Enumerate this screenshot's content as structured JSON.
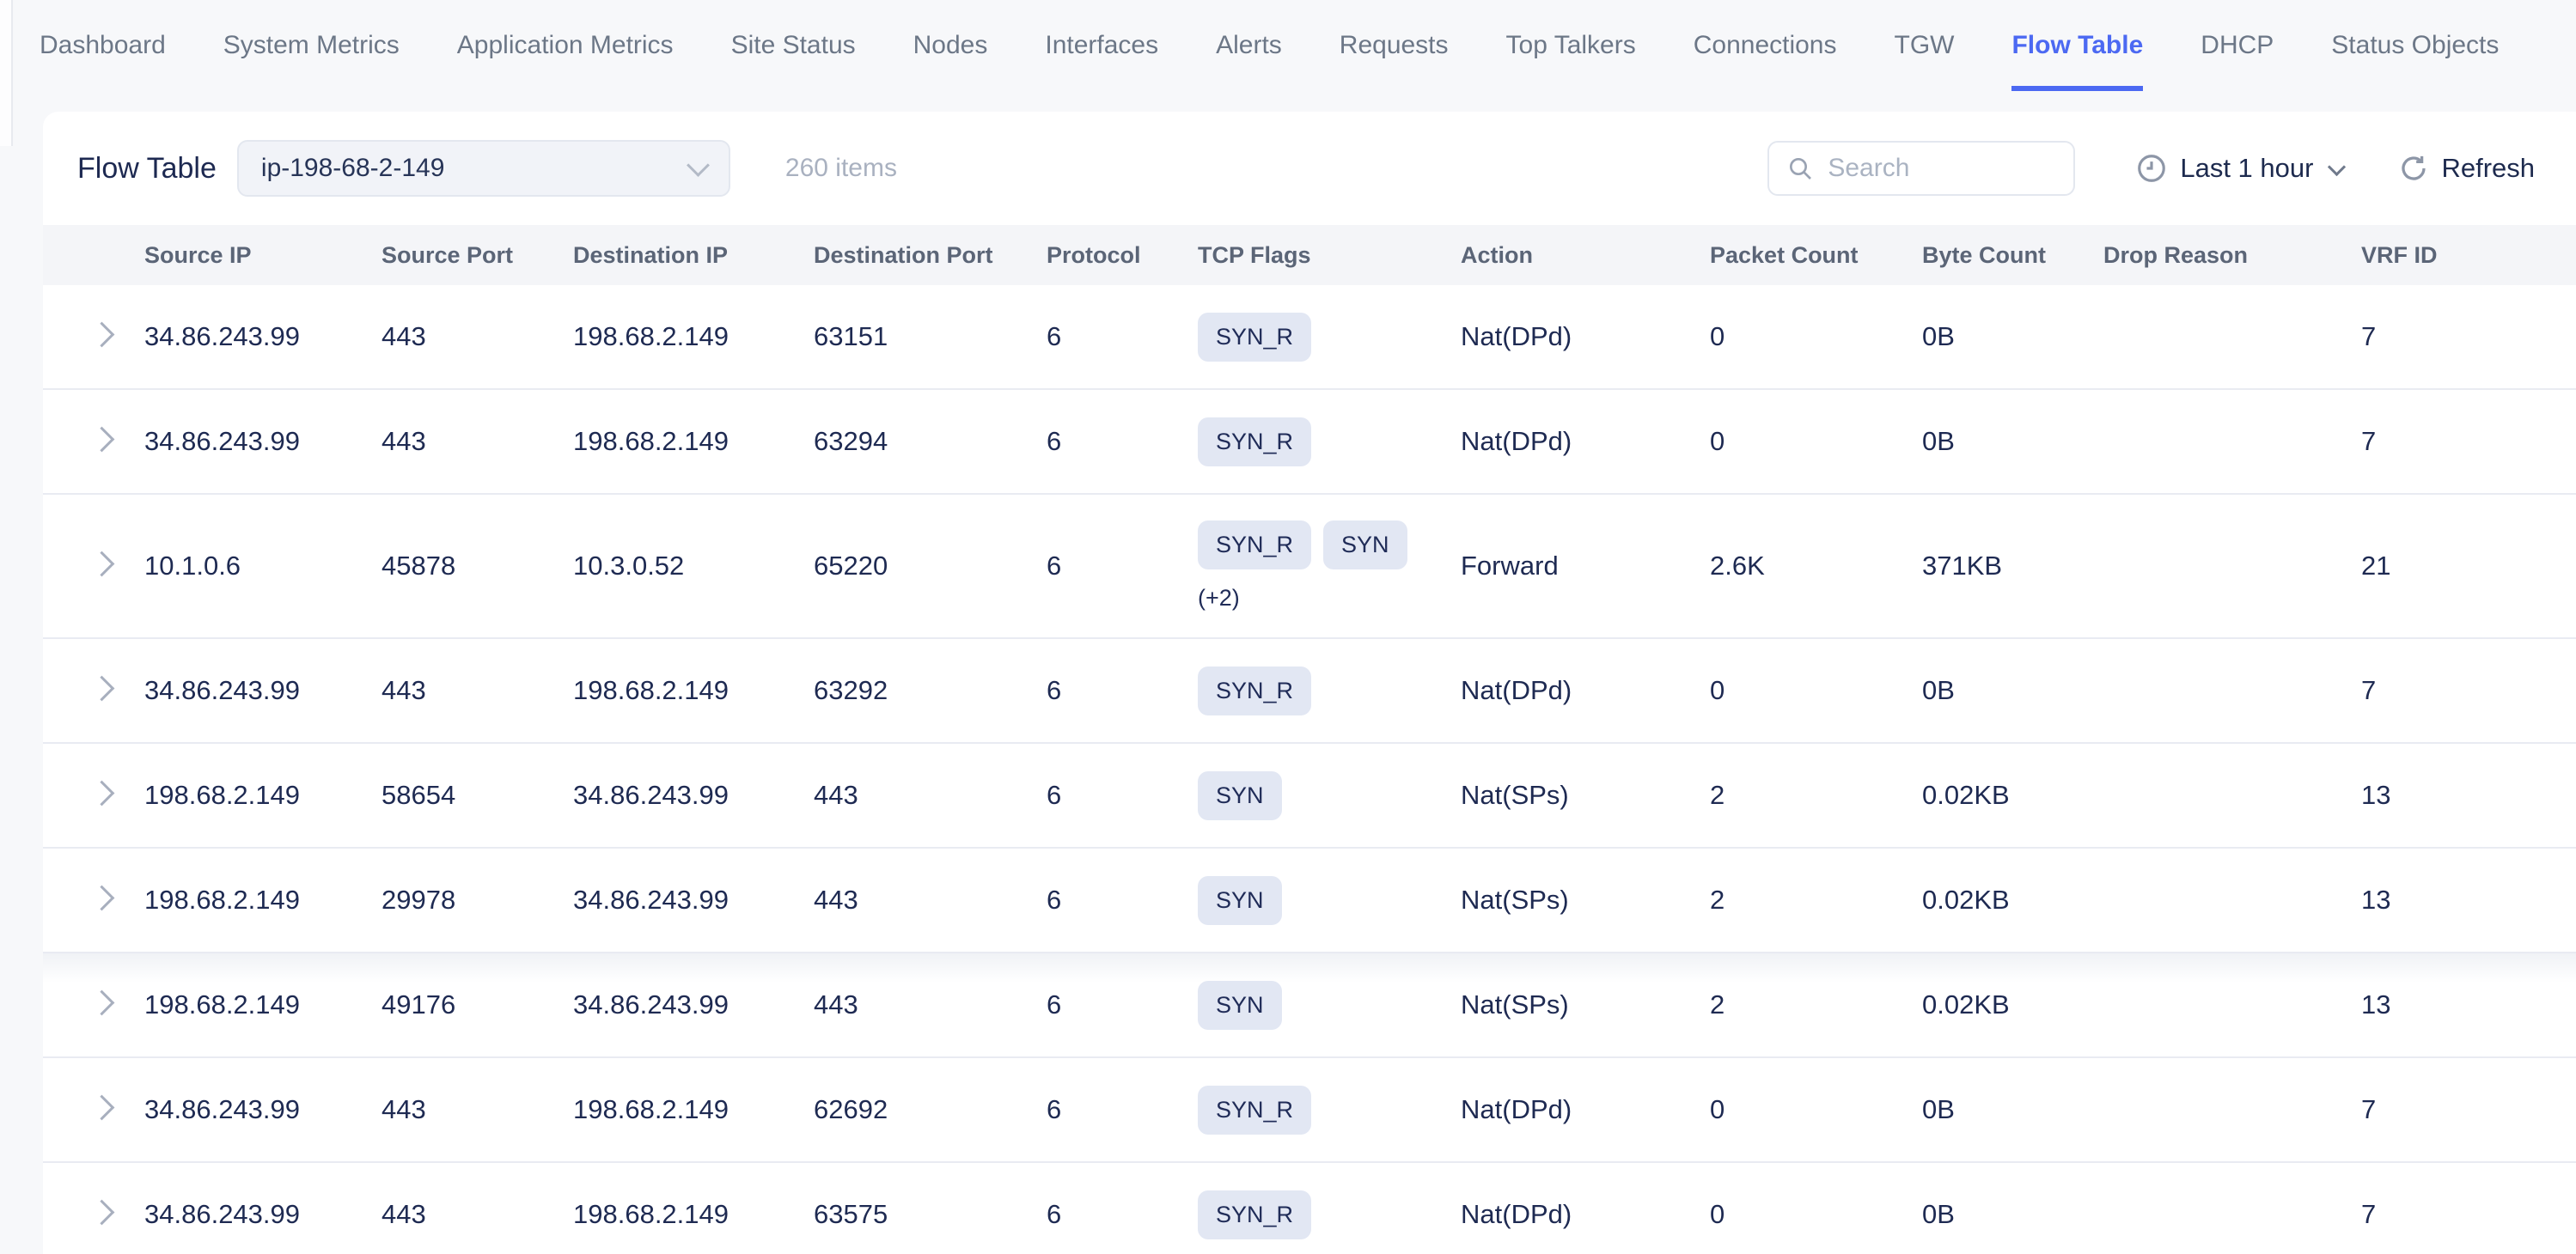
{
  "nav": {
    "tabs": [
      {
        "label": "Dashboard",
        "active": false
      },
      {
        "label": "System Metrics",
        "active": false
      },
      {
        "label": "Application Metrics",
        "active": false
      },
      {
        "label": "Site Status",
        "active": false
      },
      {
        "label": "Nodes",
        "active": false
      },
      {
        "label": "Interfaces",
        "active": false
      },
      {
        "label": "Alerts",
        "active": false
      },
      {
        "label": "Requests",
        "active": false
      },
      {
        "label": "Top Talkers",
        "active": false
      },
      {
        "label": "Connections",
        "active": false
      },
      {
        "label": "TGW",
        "active": false
      },
      {
        "label": "Flow Table",
        "active": true
      },
      {
        "label": "DHCP",
        "active": false
      },
      {
        "label": "Status Objects",
        "active": false
      }
    ]
  },
  "toolbar": {
    "title": "Flow Table",
    "selector_value": "ip-198-68-2-149",
    "items_count": "260 items",
    "search_placeholder": "Search",
    "time_range": "Last 1 hour",
    "refresh_label": "Refresh"
  },
  "icons": {
    "selector": "chevron-down-icon",
    "search": "search-icon",
    "time": "clock-icon",
    "time_caret": "chevron-down-icon",
    "refresh": "refresh-icon",
    "row_expand": "chevron-right-icon"
  },
  "colors": {
    "accent": "#4c69f2",
    "badge_bg": "#e2e7f3",
    "text_dark": "#1e2a52",
    "nav_text": "#6c7787",
    "header_bg": "#f4f5f8",
    "page_bg": "#f7f8fa"
  },
  "table": {
    "columns": [
      "Source IP",
      "Source Port",
      "Destination IP",
      "Destination Port",
      "Protocol",
      "TCP Flags",
      "Action",
      "Packet Count",
      "Byte Count",
      "Drop Reason",
      "VRF ID"
    ],
    "rows": [
      {
        "source_ip": "34.86.243.99",
        "source_port": "443",
        "destination_ip": "198.68.2.149",
        "destination_port": "63151",
        "protocol": "6",
        "tcp_flags": [
          "SYN_R"
        ],
        "flags_more": "",
        "action": "Nat(DPd)",
        "packet_count": "0",
        "byte_count": "0B",
        "drop_reason": "",
        "vrf_id": "7"
      },
      {
        "source_ip": "34.86.243.99",
        "source_port": "443",
        "destination_ip": "198.68.2.149",
        "destination_port": "63294",
        "protocol": "6",
        "tcp_flags": [
          "SYN_R"
        ],
        "flags_more": "",
        "action": "Nat(DPd)",
        "packet_count": "0",
        "byte_count": "0B",
        "drop_reason": "",
        "vrf_id": "7"
      },
      {
        "source_ip": "10.1.0.6",
        "source_port": "45878",
        "destination_ip": "10.3.0.52",
        "destination_port": "65220",
        "protocol": "6",
        "tcp_flags": [
          "SYN_R",
          "SYN"
        ],
        "flags_more": "(+2)",
        "action": "Forward",
        "packet_count": "2.6K",
        "byte_count": "371KB",
        "drop_reason": "",
        "vrf_id": "21"
      },
      {
        "source_ip": "34.86.243.99",
        "source_port": "443",
        "destination_ip": "198.68.2.149",
        "destination_port": "63292",
        "protocol": "6",
        "tcp_flags": [
          "SYN_R"
        ],
        "flags_more": "",
        "action": "Nat(DPd)",
        "packet_count": "0",
        "byte_count": "0B",
        "drop_reason": "",
        "vrf_id": "7"
      },
      {
        "source_ip": "198.68.2.149",
        "source_port": "58654",
        "destination_ip": "34.86.243.99",
        "destination_port": "443",
        "protocol": "6",
        "tcp_flags": [
          "SYN"
        ],
        "flags_more": "",
        "action": "Nat(SPs)",
        "packet_count": "2",
        "byte_count": "0.02KB",
        "drop_reason": "",
        "vrf_id": "13"
      },
      {
        "source_ip": "198.68.2.149",
        "source_port": "29978",
        "destination_ip": "34.86.243.99",
        "destination_port": "443",
        "protocol": "6",
        "tcp_flags": [
          "SYN"
        ],
        "flags_more": "",
        "action": "Nat(SPs)",
        "packet_count": "2",
        "byte_count": "0.02KB",
        "drop_reason": "",
        "vrf_id": "13"
      },
      {
        "source_ip": "198.68.2.149",
        "source_port": "49176",
        "destination_ip": "34.86.243.99",
        "destination_port": "443",
        "protocol": "6",
        "tcp_flags": [
          "SYN"
        ],
        "flags_more": "",
        "action": "Nat(SPs)",
        "packet_count": "2",
        "byte_count": "0.02KB",
        "drop_reason": "",
        "vrf_id": "13"
      },
      {
        "source_ip": "34.86.243.99",
        "source_port": "443",
        "destination_ip": "198.68.2.149",
        "destination_port": "62692",
        "protocol": "6",
        "tcp_flags": [
          "SYN_R"
        ],
        "flags_more": "",
        "action": "Nat(DPd)",
        "packet_count": "0",
        "byte_count": "0B",
        "drop_reason": "",
        "vrf_id": "7"
      },
      {
        "source_ip": "34.86.243.99",
        "source_port": "443",
        "destination_ip": "198.68.2.149",
        "destination_port": "63575",
        "protocol": "6",
        "tcp_flags": [
          "SYN_R"
        ],
        "flags_more": "",
        "action": "Nat(DPd)",
        "packet_count": "0",
        "byte_count": "0B",
        "drop_reason": "",
        "vrf_id": "7"
      }
    ]
  }
}
